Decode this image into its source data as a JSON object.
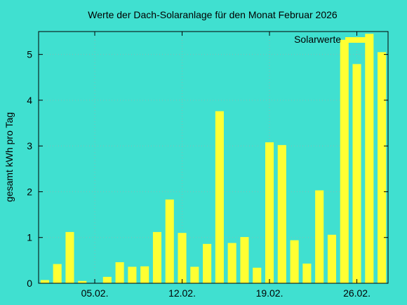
{
  "colors": {
    "background": "#40e0d0",
    "bar": "#ffff33",
    "grid": "#7fbfb8",
    "axis": "#000000"
  },
  "chart_data": {
    "type": "bar",
    "title": "Werte der Dach-Solaranlage für den Monat Februar 2026",
    "xlabel": "",
    "ylabel": "gesamt kWh pro Tag",
    "legend": {
      "label": "Solarwerte",
      "position": "top-right"
    },
    "grid": true,
    "ylim": [
      0,
      5.5
    ],
    "yticks": [
      "0",
      "1",
      "2",
      "3",
      "4",
      "5"
    ],
    "xticks": [
      {
        "day": 5,
        "label": "05.02."
      },
      {
        "day": 12,
        "label": "12.02."
      },
      {
        "day": 19,
        "label": "19.02."
      },
      {
        "day": 26,
        "label": "26.02."
      }
    ],
    "categories": [
      "01.02.",
      "02.02.",
      "03.02.",
      "04.02.",
      "05.02.",
      "06.02.",
      "07.02.",
      "08.02.",
      "09.02.",
      "10.02.",
      "11.02.",
      "12.02.",
      "13.02.",
      "14.02.",
      "15.02.",
      "16.02.",
      "17.02.",
      "18.02.",
      "19.02.",
      "20.02.",
      "21.02.",
      "22.02.",
      "23.02.",
      "24.02.",
      "25.02.",
      "26.02.",
      "27.02.",
      "28.02."
    ],
    "values": [
      0.07,
      0.42,
      1.12,
      0.05,
      0.0,
      0.14,
      0.46,
      0.36,
      0.37,
      1.12,
      1.83,
      1.1,
      0.36,
      0.86,
      3.76,
      0.88,
      1.01,
      0.34,
      3.08,
      3.02,
      0.94,
      0.43,
      2.03,
      1.06,
      5.32,
      4.79,
      5.45,
      5.05
    ]
  }
}
